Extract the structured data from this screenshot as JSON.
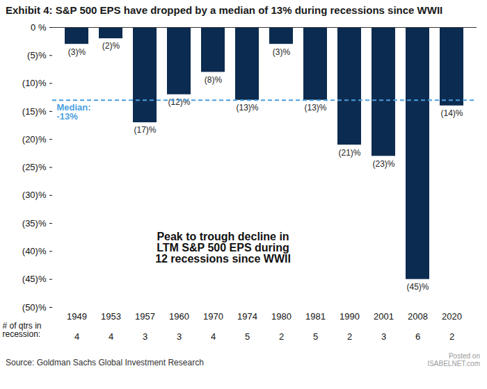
{
  "chart_data": {
    "type": "bar",
    "title": "Exhibit 4: S&P 500 EPS have dropped by a median of 13% during recessions since WWII",
    "categories": [
      "1949",
      "1953",
      "1957",
      "1960",
      "1970",
      "1974",
      "1980",
      "1981",
      "1990",
      "2001",
      "2008",
      "2020"
    ],
    "values": [
      -3,
      -2,
      -17,
      -12,
      -8,
      -13,
      -3,
      -13,
      -21,
      -23,
      -45,
      -14
    ],
    "value_labels": [
      "(3)%",
      "(2)%",
      "(17)%",
      "(12)%",
      "(8)%",
      "(13)%",
      "(3)%",
      "(13)%",
      "(21)%",
      "(23)%",
      "(45)%",
      "(14)%"
    ],
    "data_labels": true,
    "color": "#0c2b50",
    "ylim": [
      -50,
      0
    ],
    "yticks": [
      {
        "value": 0,
        "label": "0 %"
      },
      {
        "value": -5,
        "label": "(5)%"
      },
      {
        "value": -10,
        "label": "(10)%"
      },
      {
        "value": -15,
        "label": "(15)%"
      },
      {
        "value": -20,
        "label": "(20)%"
      },
      {
        "value": -25,
        "label": "(25)%"
      },
      {
        "value": -30,
        "label": "(30)%"
      },
      {
        "value": -35,
        "label": "(35)%"
      },
      {
        "value": -40,
        "label": "(40)%"
      },
      {
        "value": -45,
        "label": "(45)%"
      },
      {
        "value": -50,
        "label": "(50)%"
      }
    ],
    "grid": false,
    "median": {
      "value": -13,
      "label": [
        "Median:",
        "-13%"
      ],
      "color": "#4a9fe0"
    },
    "annotation": [
      "Peak to trough decline in",
      "LTM S&P 500 EPS during",
      "12 recessions since WWII"
    ],
    "quarters_in_recession": {
      "label": [
        "# of qtrs in",
        "recession:"
      ],
      "values": [
        4,
        4,
        3,
        3,
        4,
        5,
        2,
        5,
        2,
        3,
        6,
        2
      ]
    },
    "source": "Source: Goldman Sachs Global Investment Research",
    "watermark": [
      "Posted on",
      "ISABELNET.com"
    ]
  }
}
